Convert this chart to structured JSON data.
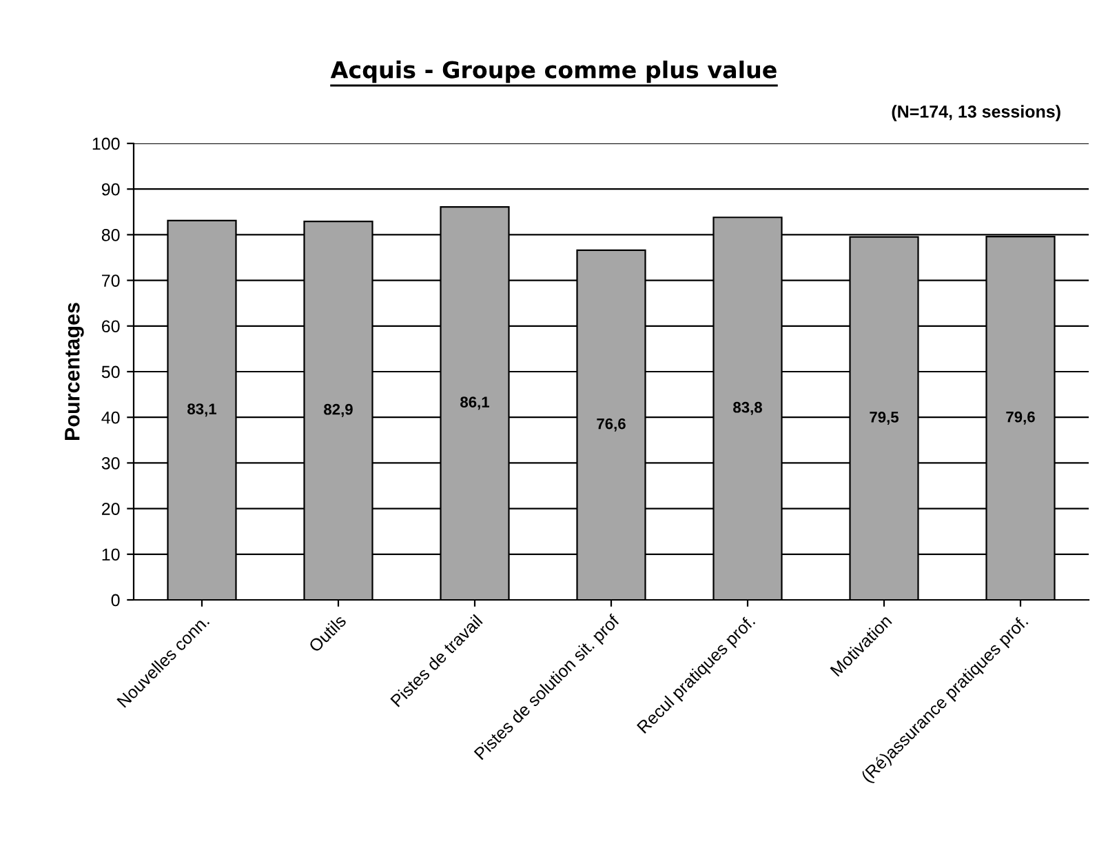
{
  "chart_data": {
    "type": "bar",
    "title": "Acquis - Groupe comme plus value",
    "subtitle": "(N=174, 13 sessions)",
    "ylabel": "Pourcentages",
    "categories": [
      "Nouvelles conn.",
      "Outils",
      "Pistes de travail",
      "Pistes de solution sit. prof",
      "Recul pratiques prof.",
      "Motivation",
      "(Ré)assurance pratiques prof."
    ],
    "values": [
      83.1,
      82.9,
      86.1,
      76.6,
      83.8,
      79.5,
      79.6
    ],
    "value_labels": [
      "83,1",
      "82,9",
      "86,1",
      "76,6",
      "83,8",
      "79,5",
      "79,6"
    ],
    "color": "#a6a6a6",
    "ylim": [
      0,
      100
    ],
    "yticks": [
      0,
      10,
      20,
      30,
      40,
      50,
      60,
      70,
      80,
      90,
      100
    ],
    "grid": "y",
    "legend": false
  }
}
